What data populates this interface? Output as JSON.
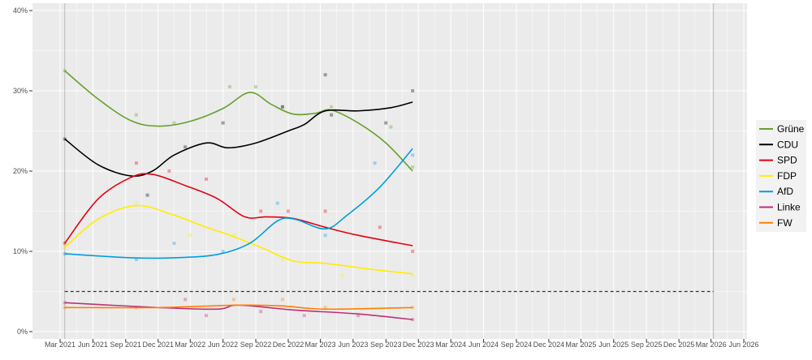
{
  "chart_data": {
    "type": "line",
    "title": "",
    "xlabel": "",
    "ylabel": "",
    "ylim": [
      0,
      40
    ],
    "xlim": [
      "2021-01-01",
      "2026-07-15"
    ],
    "yticks": [
      "0%",
      "10%",
      "20%",
      "30%",
      "40%"
    ],
    "ytick_values": [
      0,
      10,
      20,
      30,
      40
    ],
    "xticks": [
      {
        "date": "2021-03-01",
        "label": "Mar 2021"
      },
      {
        "date": "2021-06-01",
        "label": "Jun 2021"
      },
      {
        "date": "2021-09-01",
        "label": "Sep 2021"
      },
      {
        "date": "2021-12-01",
        "label": "Dec 2021"
      },
      {
        "date": "2022-03-01",
        "label": "Mar 2022"
      },
      {
        "date": "2022-06-01",
        "label": "Jun 2022"
      },
      {
        "date": "2022-09-01",
        "label": "Sep 2022"
      },
      {
        "date": "2022-12-01",
        "label": "Dec 2022"
      },
      {
        "date": "2023-03-01",
        "label": "Mar 2023"
      },
      {
        "date": "2023-06-01",
        "label": "Jun 2023"
      },
      {
        "date": "2023-09-01",
        "label": "Sep 2023"
      },
      {
        "date": "2023-12-01",
        "label": "Dec 2023"
      },
      {
        "date": "2024-03-01",
        "label": "Mar 2024"
      },
      {
        "date": "2024-06-01",
        "label": "Jun 2024"
      },
      {
        "date": "2024-09-01",
        "label": "Sep 2024"
      },
      {
        "date": "2024-12-01",
        "label": "Dec 2024"
      },
      {
        "date": "2025-03-01",
        "label": "Mar 2025"
      },
      {
        "date": "2025-06-01",
        "label": "Jun 2025"
      },
      {
        "date": "2025-09-01",
        "label": "Sep 2025"
      },
      {
        "date": "2025-12-01",
        "label": "Dec 2025"
      },
      {
        "date": "2026-03-01",
        "label": "Mar 2026"
      },
      {
        "date": "2026-06-01",
        "label": "Jun 2026"
      }
    ],
    "grid": true,
    "legend_placement": "right",
    "threshold_line": {
      "value": 5,
      "style": "dashed",
      "from": "2021-03-14",
      "to": "2026-03-08"
    },
    "election_lines": [
      "2021-03-14",
      "2026-03-08"
    ],
    "series": [
      {
        "name": "Grüne",
        "color": "#64a12d",
        "trend": [
          [
            "2021-03-14",
            32.5
          ],
          [
            "2021-06-15",
            29
          ],
          [
            "2021-09-15",
            26.3
          ],
          [
            "2021-12-01",
            25.6
          ],
          [
            "2022-03-01",
            26.2
          ],
          [
            "2022-06-01",
            27.8
          ],
          [
            "2022-08-15",
            29.8
          ],
          [
            "2022-10-15",
            28.3
          ],
          [
            "2022-12-15",
            27.1
          ],
          [
            "2023-02-15",
            27.2
          ],
          [
            "2023-04-01",
            27.6
          ],
          [
            "2023-06-15",
            26
          ],
          [
            "2023-09-01",
            23.5
          ],
          [
            "2023-11-15",
            20
          ]
        ],
        "points": [
          [
            "2021-03-14",
            32.5
          ],
          [
            "2021-10-01",
            27
          ],
          [
            "2022-01-15",
            26
          ],
          [
            "2022-06-20",
            30.5
          ],
          [
            "2022-09-01",
            30.5
          ],
          [
            "2022-11-15",
            28
          ],
          [
            "2023-04-01",
            28
          ],
          [
            "2023-09-15",
            25.5
          ],
          [
            "2023-11-15",
            20.5
          ]
        ]
      },
      {
        "name": "CDU",
        "color": "#000000",
        "trend": [
          [
            "2021-03-14",
            24
          ],
          [
            "2021-06-15",
            20.8
          ],
          [
            "2021-09-15",
            19.4
          ],
          [
            "2021-11-15",
            20
          ],
          [
            "2022-01-15",
            22
          ],
          [
            "2022-04-15",
            23.5
          ],
          [
            "2022-06-15",
            22.9
          ],
          [
            "2022-09-01",
            23.5
          ],
          [
            "2022-12-01",
            25
          ],
          [
            "2023-01-15",
            25.8
          ],
          [
            "2023-03-15",
            27.5
          ],
          [
            "2023-06-15",
            27.5
          ],
          [
            "2023-09-15",
            27.9
          ],
          [
            "2023-11-15",
            28.6
          ]
        ],
        "points": [
          [
            "2021-03-14",
            24
          ],
          [
            "2021-11-01",
            17
          ],
          [
            "2022-02-15",
            23
          ],
          [
            "2022-06-01",
            26
          ],
          [
            "2022-11-15",
            28
          ],
          [
            "2023-03-15",
            32
          ],
          [
            "2023-04-01",
            27
          ],
          [
            "2023-09-01",
            26
          ],
          [
            "2023-11-15",
            30
          ]
        ]
      },
      {
        "name": "SPD",
        "color": "#e3000f",
        "trend": [
          [
            "2021-03-14",
            11
          ],
          [
            "2021-06-15",
            16.5
          ],
          [
            "2021-09-15",
            19.2
          ],
          [
            "2021-11-15",
            19.6
          ],
          [
            "2022-02-15",
            18.2
          ],
          [
            "2022-05-15",
            16.6
          ],
          [
            "2022-08-01",
            14.3
          ],
          [
            "2022-10-01",
            14.3
          ],
          [
            "2022-12-15",
            14.1
          ],
          [
            "2023-03-15",
            13
          ],
          [
            "2023-06-15",
            12
          ],
          [
            "2023-11-15",
            10.7
          ]
        ],
        "points": [
          [
            "2021-03-14",
            11
          ],
          [
            "2021-10-01",
            21
          ],
          [
            "2022-01-01",
            20
          ],
          [
            "2022-04-15",
            19
          ],
          [
            "2022-09-15",
            15
          ],
          [
            "2022-12-01",
            15
          ],
          [
            "2023-03-15",
            15
          ],
          [
            "2023-08-15",
            13
          ],
          [
            "2023-11-15",
            10
          ]
        ]
      },
      {
        "name": "FDP",
        "color": "#ffed00",
        "trend": [
          [
            "2021-03-14",
            10.5
          ],
          [
            "2021-06-15",
            14
          ],
          [
            "2021-10-01",
            15.7
          ],
          [
            "2022-01-15",
            14.5
          ],
          [
            "2022-04-15",
            13
          ],
          [
            "2022-06-15",
            12.1
          ],
          [
            "2022-09-15",
            10.5
          ],
          [
            "2022-12-15",
            8.8
          ],
          [
            "2023-03-15",
            8.5
          ],
          [
            "2023-07-15",
            7.8
          ],
          [
            "2023-11-15",
            7.2
          ]
        ],
        "points": [
          [
            "2021-03-14",
            10.5
          ],
          [
            "2021-10-01",
            16
          ],
          [
            "2022-03-01",
            12
          ],
          [
            "2022-07-01",
            12
          ],
          [
            "2022-11-15",
            9
          ],
          [
            "2023-05-01",
            7
          ],
          [
            "2023-11-15",
            7
          ]
        ]
      },
      {
        "name": "AfD",
        "color": "#009ee0",
        "trend": [
          [
            "2021-03-14",
            9.7
          ],
          [
            "2021-09-15",
            9.2
          ],
          [
            "2022-01-15",
            9.2
          ],
          [
            "2022-05-15",
            9.6
          ],
          [
            "2022-08-15",
            11
          ],
          [
            "2022-11-01",
            13.8
          ],
          [
            "2022-12-20",
            14
          ],
          [
            "2023-03-15",
            12.8
          ],
          [
            "2023-05-15",
            14.5
          ],
          [
            "2023-08-15",
            18
          ],
          [
            "2023-11-15",
            22.8
          ]
        ],
        "points": [
          [
            "2021-03-14",
            9.7
          ],
          [
            "2021-10-01",
            9
          ],
          [
            "2022-01-15",
            11
          ],
          [
            "2022-06-01",
            10
          ],
          [
            "2022-11-01",
            16
          ],
          [
            "2023-03-15",
            12
          ],
          [
            "2023-08-01",
            21
          ],
          [
            "2023-11-15",
            22
          ]
        ]
      },
      {
        "name": "Linke",
        "color": "#be3075",
        "trend": [
          [
            "2021-03-14",
            3.6
          ],
          [
            "2021-12-01",
            3
          ],
          [
            "2022-05-15",
            2.8
          ],
          [
            "2022-07-15",
            3.3
          ],
          [
            "2022-12-15",
            2.7
          ],
          [
            "2023-06-15",
            2.2
          ],
          [
            "2023-11-15",
            1.5
          ]
        ],
        "points": [
          [
            "2021-03-14",
            3.6
          ],
          [
            "2022-02-15",
            4
          ],
          [
            "2022-04-15",
            2
          ],
          [
            "2022-09-15",
            2.5
          ],
          [
            "2023-01-15",
            2
          ],
          [
            "2023-06-15",
            2
          ],
          [
            "2023-11-15",
            1.5
          ]
        ]
      },
      {
        "name": "FW",
        "color": "#ff8000",
        "trend": [
          [
            "2021-03-14",
            3
          ],
          [
            "2021-12-01",
            3
          ],
          [
            "2022-07-15",
            3.3
          ],
          [
            "2022-11-15",
            3.2
          ],
          [
            "2023-03-15",
            2.8
          ],
          [
            "2023-11-15",
            3
          ]
        ],
        "points": [
          [
            "2021-03-14",
            3
          ],
          [
            "2021-10-01",
            3
          ],
          [
            "2022-07-01",
            4
          ],
          [
            "2022-11-15",
            4
          ],
          [
            "2023-03-15",
            3
          ],
          [
            "2023-11-15",
            3
          ]
        ]
      }
    ]
  }
}
